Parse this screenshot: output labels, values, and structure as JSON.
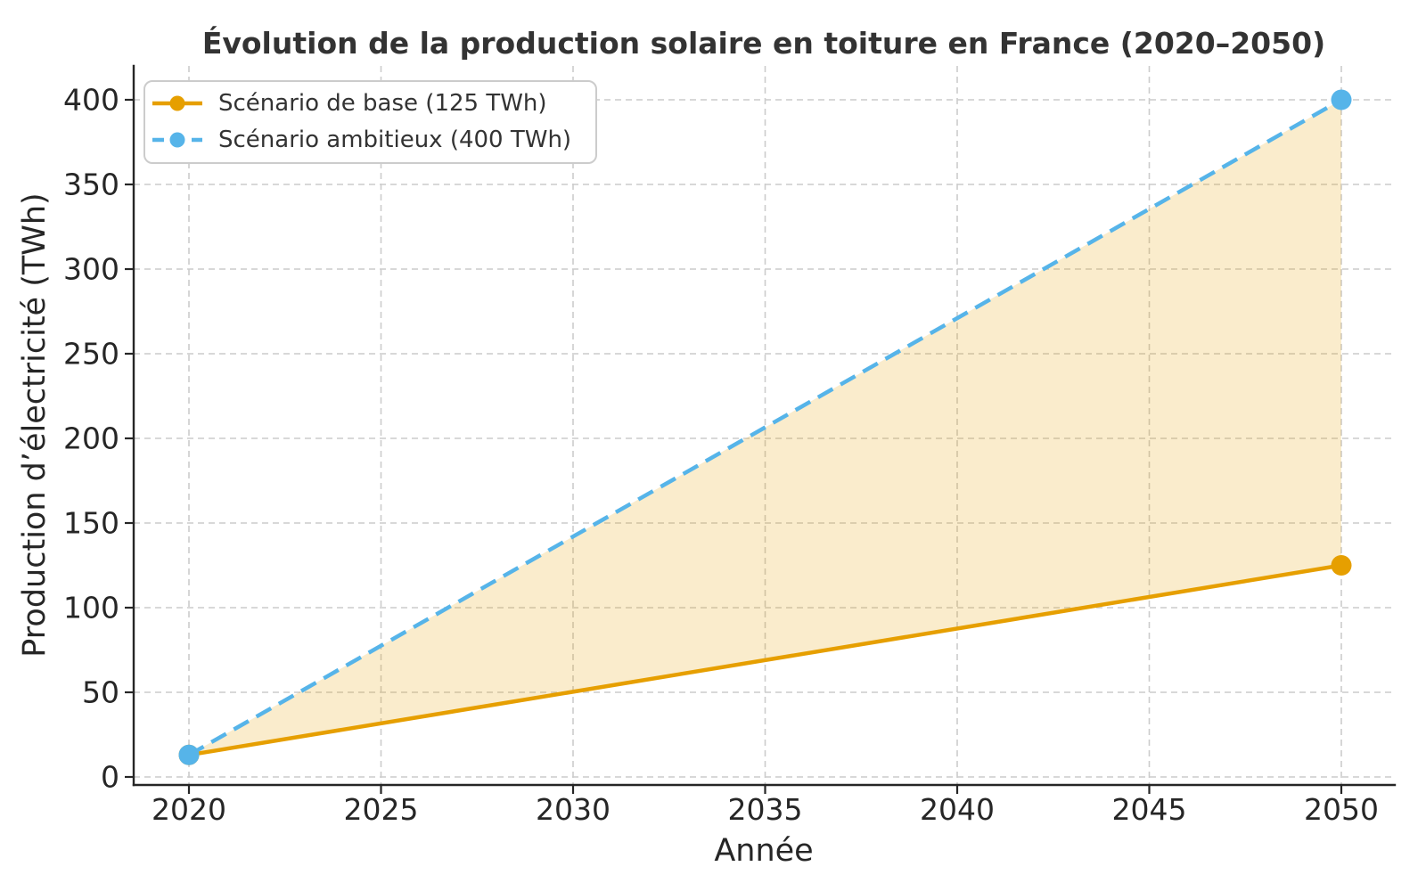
{
  "chart_data": {
    "type": "line",
    "title": "Évolution de la production solaire en toiture en France (2020–2050)",
    "xlabel": "Année",
    "ylabel": "Production d’électricité (TWh)",
    "x_ticks": [
      2020,
      2025,
      2030,
      2035,
      2040,
      2045,
      2050
    ],
    "y_ticks": [
      0,
      50,
      100,
      150,
      200,
      250,
      300,
      350,
      400
    ],
    "xlim": [
      2020,
      2050
    ],
    "ylim": [
      0,
      400
    ],
    "grid": true,
    "grid_color": "#cccccc",
    "axis_color": "#262626",
    "text_color": "#333333",
    "legend": {
      "position": "upper-left",
      "background": "#ffffff",
      "border_color": "#cccccc"
    },
    "series": [
      {
        "name": "Scénario de base (125 TWh)",
        "x": [
          2020,
          2050
        ],
        "values": [
          13,
          125
        ],
        "color": "#E69F00",
        "line_style": "solid",
        "marker": "circle"
      },
      {
        "name": "Scénario ambitieux (400 TWh)",
        "x": [
          2020,
          2050
        ],
        "values": [
          13,
          400
        ],
        "color": "#56B4E9",
        "line_style": "dashed",
        "marker": "circle"
      }
    ],
    "fill_between": {
      "between": [
        "Scénario de base (125 TWh)",
        "Scénario ambitieux (400 TWh)"
      ],
      "color": "#E69F00",
      "opacity": 0.2
    }
  }
}
